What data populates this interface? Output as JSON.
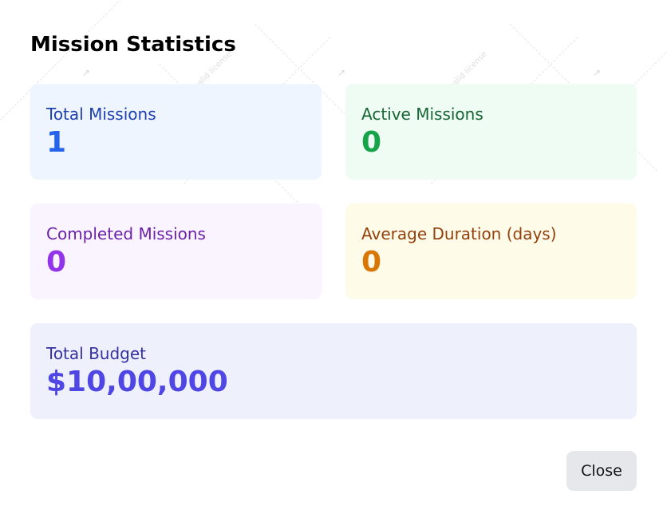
{
  "dialog": {
    "title": "Mission Statistics",
    "close_label": "Close"
  },
  "stats": {
    "total": {
      "label": "Total Missions",
      "value": "1",
      "label_color": "#1e40af",
      "value_color": "#2563eb"
    },
    "active": {
      "label": "Active Missions",
      "value": "0",
      "label_color": "#166534",
      "value_color": "#16a34a"
    },
    "completed": {
      "label": "Completed Missions",
      "value": "0",
      "label_color": "#6b21a8",
      "value_color": "#9333ea"
    },
    "duration": {
      "label": "Average Duration (days)",
      "value": "0",
      "label_color": "#92400e",
      "value_color": "#d97706"
    },
    "budget": {
      "label": "Total Budget",
      "value": "$10,00,000",
      "label_color": "#3730a3",
      "value_color": "#4f46e5"
    }
  },
  "watermark": {
    "text": "Invalid license"
  }
}
